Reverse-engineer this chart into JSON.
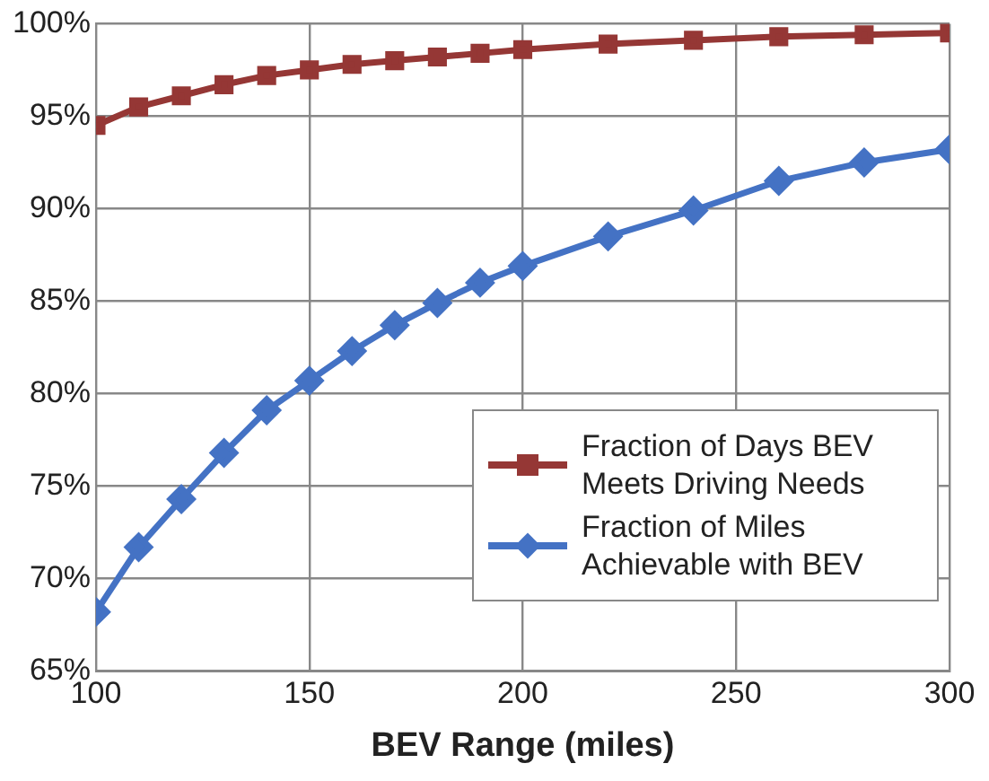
{
  "chart_data": {
    "type": "line",
    "xlabel": "BEV Range (miles)",
    "x": [
      100,
      110,
      120,
      130,
      140,
      150,
      160,
      170,
      180,
      190,
      200,
      220,
      240,
      260,
      280,
      300
    ],
    "series": [
      {
        "name": "Fraction of Days BEV Meets Driving Needs",
        "color": "#953735",
        "marker": "square",
        "values": [
          94.5,
          95.5,
          96.1,
          96.7,
          97.2,
          97.5,
          97.8,
          98.0,
          98.2,
          98.4,
          98.6,
          98.9,
          99.1,
          99.3,
          99.4,
          99.5
        ]
      },
      {
        "name": "Fraction of Miles Achievable with BEV",
        "color": "#4472c4",
        "marker": "diamond",
        "values": [
          68.2,
          71.7,
          74.3,
          76.8,
          79.1,
          80.7,
          82.3,
          83.7,
          84.9,
          86.0,
          86.9,
          88.5,
          89.9,
          91.5,
          92.5,
          93.2
        ]
      }
    ],
    "xlim": [
      100,
      300
    ],
    "xticks": [
      100,
      150,
      200,
      250,
      300
    ],
    "ylim": [
      65,
      100
    ],
    "yticks": [
      {
        "value": 65,
        "label": "65%"
      },
      {
        "value": 70,
        "label": "70%"
      },
      {
        "value": 75,
        "label": "75%"
      },
      {
        "value": 80,
        "label": "80%"
      },
      {
        "value": 85,
        "label": "85%"
      },
      {
        "value": 90,
        "label": "90%"
      },
      {
        "value": 95,
        "label": "95%"
      },
      {
        "value": 100,
        "label": "100%"
      }
    ],
    "grid": true,
    "legend": "bottom right",
    "line_style": "solid"
  }
}
